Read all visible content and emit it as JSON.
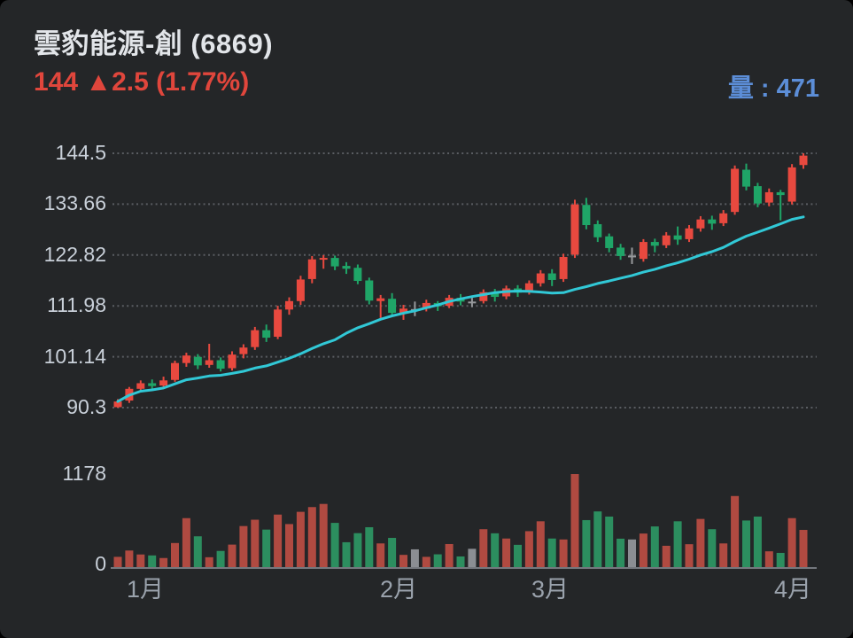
{
  "header": {
    "title": "雲豹能源-創 (6869)",
    "price": "144",
    "change_icon": "▲",
    "change": "2.5",
    "change_pct": "(1.77%)",
    "volume_label": "量",
    "volume_separator": " : ",
    "volume_value": "471"
  },
  "colors": {
    "background": "#242628",
    "title_text": "#e2e5e9",
    "price_up_text": "#e0463c",
    "volume_text": "#5c8ed8",
    "axis_text": "#c9d0d9",
    "xaxis_text": "#9aa2ac",
    "grid_dots": "#5a5d62",
    "baseline": "#74787e",
    "candle_up": "#e8493f",
    "candle_down": "#1fa567",
    "candle_flat": "#97999c",
    "vol_up": "#b04a41",
    "vol_down": "#2c8e5f",
    "vol_flat": "#8b8e93",
    "ma_line": "#31c8d6"
  },
  "chart_data": {
    "type": "candlestick",
    "title": "雲豹能源-創 (6869)",
    "last_price": 144,
    "change": 2.5,
    "change_percent": 1.77,
    "last_volume": 471,
    "y_axis_ticks": [
      "144.5",
      "133.66",
      "122.82",
      "111.98",
      "101.14",
      "90.3"
    ],
    "volume_axis_ticks": [
      "1178",
      "0"
    ],
    "x_axis_labels": [
      "1月",
      "2月",
      "3月",
      "4月"
    ],
    "price_range": [
      90.3,
      144.5
    ],
    "volume_max": 1178,
    "ma_window": 20,
    "grid": "dotted-horizontal",
    "legend_position": "none",
    "columns": [
      "open",
      "high",
      "low",
      "close",
      "volume",
      "kind"
    ],
    "candles": [
      [
        90.4,
        92.1,
        90.3,
        91.6,
        130,
        "up"
      ],
      [
        91.8,
        94.7,
        91.3,
        94.3,
        210,
        "up"
      ],
      [
        94.3,
        96.1,
        93.7,
        95.5,
        160,
        "up"
      ],
      [
        95.5,
        96.3,
        94.2,
        94.9,
        148,
        "down"
      ],
      [
        95.0,
        96.9,
        94.7,
        96.1,
        115,
        "up"
      ],
      [
        96.2,
        100.3,
        95.8,
        99.8,
        305,
        "up"
      ],
      [
        99.8,
        102.0,
        99.0,
        101.4,
        620,
        "up"
      ],
      [
        101.1,
        101.7,
        98.5,
        99.3,
        390,
        "down"
      ],
      [
        99.4,
        103.9,
        98.8,
        100.4,
        125,
        "up"
      ],
      [
        100.4,
        101.0,
        98.0,
        98.6,
        205,
        "down"
      ],
      [
        98.7,
        102.3,
        98.2,
        101.6,
        285,
        "up"
      ],
      [
        101.7,
        103.8,
        100.8,
        103.1,
        520,
        "up"
      ],
      [
        103.2,
        107.5,
        102.6,
        106.8,
        600,
        "up"
      ],
      [
        106.8,
        108.0,
        104.3,
        105.2,
        475,
        "down"
      ],
      [
        105.4,
        112.0,
        104.9,
        111.2,
        665,
        "up"
      ],
      [
        111.2,
        113.8,
        110.1,
        113.0,
        545,
        "up"
      ],
      [
        113.0,
        118.4,
        112.2,
        117.6,
        700,
        "up"
      ],
      [
        117.7,
        122.6,
        116.8,
        121.9,
        760,
        "up"
      ],
      [
        121.9,
        122.8,
        119.9,
        122.2,
        800,
        "up"
      ],
      [
        122.2,
        122.7,
        119.6,
        120.4,
        560,
        "down"
      ],
      [
        120.5,
        121.3,
        118.8,
        119.9,
        315,
        "down"
      ],
      [
        120.1,
        120.8,
        116.6,
        117.3,
        430,
        "down"
      ],
      [
        117.4,
        118.0,
        112.3,
        113.1,
        505,
        "down"
      ],
      [
        113.0,
        114.3,
        109.4,
        113.6,
        300,
        "up"
      ],
      [
        113.5,
        114.7,
        109.9,
        110.5,
        370,
        "down"
      ],
      [
        110.5,
        112.2,
        109.0,
        111.4,
        155,
        "up"
      ],
      [
        111.3,
        112.9,
        109.8,
        111.3,
        225,
        "flat"
      ],
      [
        111.4,
        113.3,
        110.8,
        112.6,
        130,
        "up"
      ],
      [
        112.6,
        113.0,
        110.9,
        111.9,
        162,
        "down"
      ],
      [
        112.0,
        114.3,
        111.5,
        113.7,
        292,
        "up"
      ],
      [
        113.7,
        114.5,
        112.1,
        112.9,
        135,
        "down"
      ],
      [
        112.9,
        113.7,
        111.7,
        112.9,
        232,
        "flat"
      ],
      [
        113.0,
        115.5,
        112.5,
        114.9,
        480,
        "up"
      ],
      [
        114.9,
        115.6,
        112.9,
        113.9,
        428,
        "down"
      ],
      [
        114.0,
        116.3,
        113.4,
        115.7,
        362,
        "up"
      ],
      [
        115.7,
        116.4,
        113.9,
        114.8,
        282,
        "down"
      ],
      [
        114.9,
        117.4,
        114.4,
        116.8,
        455,
        "up"
      ],
      [
        116.8,
        119.6,
        116.1,
        118.9,
        580,
        "up"
      ],
      [
        118.9,
        119.8,
        116.2,
        117.5,
        362,
        "down"
      ],
      [
        117.7,
        123.1,
        117.1,
        122.4,
        350,
        "up"
      ],
      [
        122.9,
        134.6,
        122.2,
        133.6,
        1178,
        "up"
      ],
      [
        133.5,
        135.0,
        128.3,
        129.2,
        595,
        "down"
      ],
      [
        129.4,
        130.2,
        125.6,
        126.6,
        705,
        "down"
      ],
      [
        126.8,
        127.4,
        123.4,
        124.3,
        640,
        "down"
      ],
      [
        124.4,
        125.2,
        121.8,
        122.6,
        360,
        "down"
      ],
      [
        122.7,
        124.4,
        120.9,
        122.7,
        350,
        "flat"
      ],
      [
        122.0,
        126.2,
        121.4,
        125.6,
        425,
        "up"
      ],
      [
        125.6,
        126.3,
        123.4,
        124.8,
        515,
        "down"
      ],
      [
        124.9,
        127.7,
        124.3,
        127.0,
        270,
        "up"
      ],
      [
        127.0,
        128.9,
        125.0,
        126.1,
        580,
        "down"
      ],
      [
        126.2,
        129.2,
        125.6,
        128.5,
        290,
        "up"
      ],
      [
        128.5,
        131.1,
        127.8,
        130.4,
        610,
        "up"
      ],
      [
        130.4,
        131.2,
        128.2,
        129.5,
        480,
        "down"
      ],
      [
        129.6,
        132.4,
        129.0,
        131.7,
        300,
        "up"
      ],
      [
        132.0,
        141.9,
        131.4,
        141.2,
        900,
        "up"
      ],
      [
        141.0,
        142.3,
        136.6,
        137.4,
        590,
        "down"
      ],
      [
        137.5,
        138.2,
        133.0,
        133.8,
        640,
        "down"
      ],
      [
        134.0,
        137.0,
        133.2,
        136.2,
        200,
        "up"
      ],
      [
        136.2,
        136.7,
        130.2,
        135.6,
        180,
        "down"
      ],
      [
        134.2,
        142.2,
        133.6,
        141.5,
        620,
        "up"
      ],
      [
        142.0,
        144.5,
        141.2,
        144.0,
        471,
        "up"
      ]
    ]
  }
}
